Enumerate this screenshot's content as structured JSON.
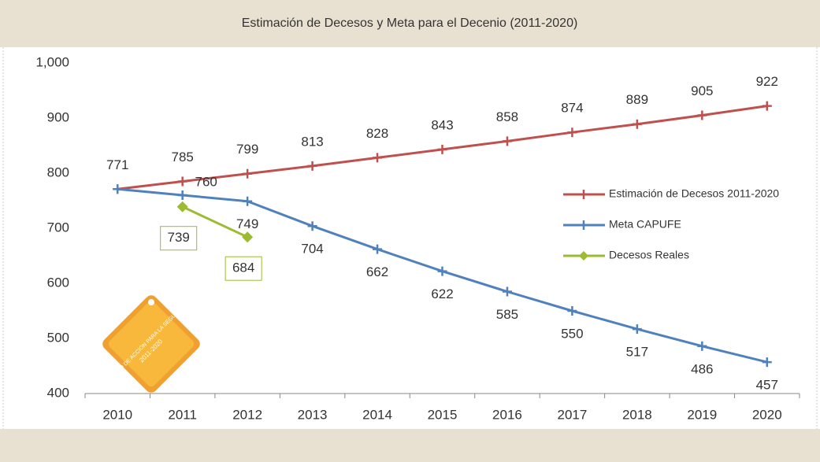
{
  "chart_data": {
    "type": "line",
    "title": "Estimación de Decesos y Meta para el Decenio (2011-2020)",
    "categories": [
      "2010",
      "2011",
      "2012",
      "2013",
      "2014",
      "2015",
      "2016",
      "2017",
      "2018",
      "2019",
      "2020"
    ],
    "series": [
      {
        "name": "Estimación de Decesos 2011-2020",
        "color": "#c0504d",
        "marker": "plus",
        "values": [
          771,
          785,
          799,
          813,
          828,
          843,
          858,
          874,
          889,
          905,
          922
        ]
      },
      {
        "name": "Meta CAPUFE",
        "color": "#4f81bd",
        "marker": "plus",
        "values": [
          771,
          760,
          749,
          704,
          662,
          622,
          585,
          550,
          517,
          486,
          457
        ]
      },
      {
        "name": "Decesos Reales",
        "color": "#9bbb30",
        "marker": "diamond",
        "values": [
          null,
          739,
          684,
          null,
          null,
          null,
          null,
          null,
          null,
          null,
          null
        ]
      }
    ],
    "ylim": [
      400,
      1000
    ],
    "yticks": [
      400,
      500,
      600,
      700,
      800,
      900,
      {
        "value": 1000,
        "label": "1,000"
      }
    ],
    "grid": false,
    "legend": "right",
    "annotations": [
      "DECENIO DE ACCIÓN PARA LA SEGURIDAD VIAL",
      "2011-2020"
    ]
  }
}
